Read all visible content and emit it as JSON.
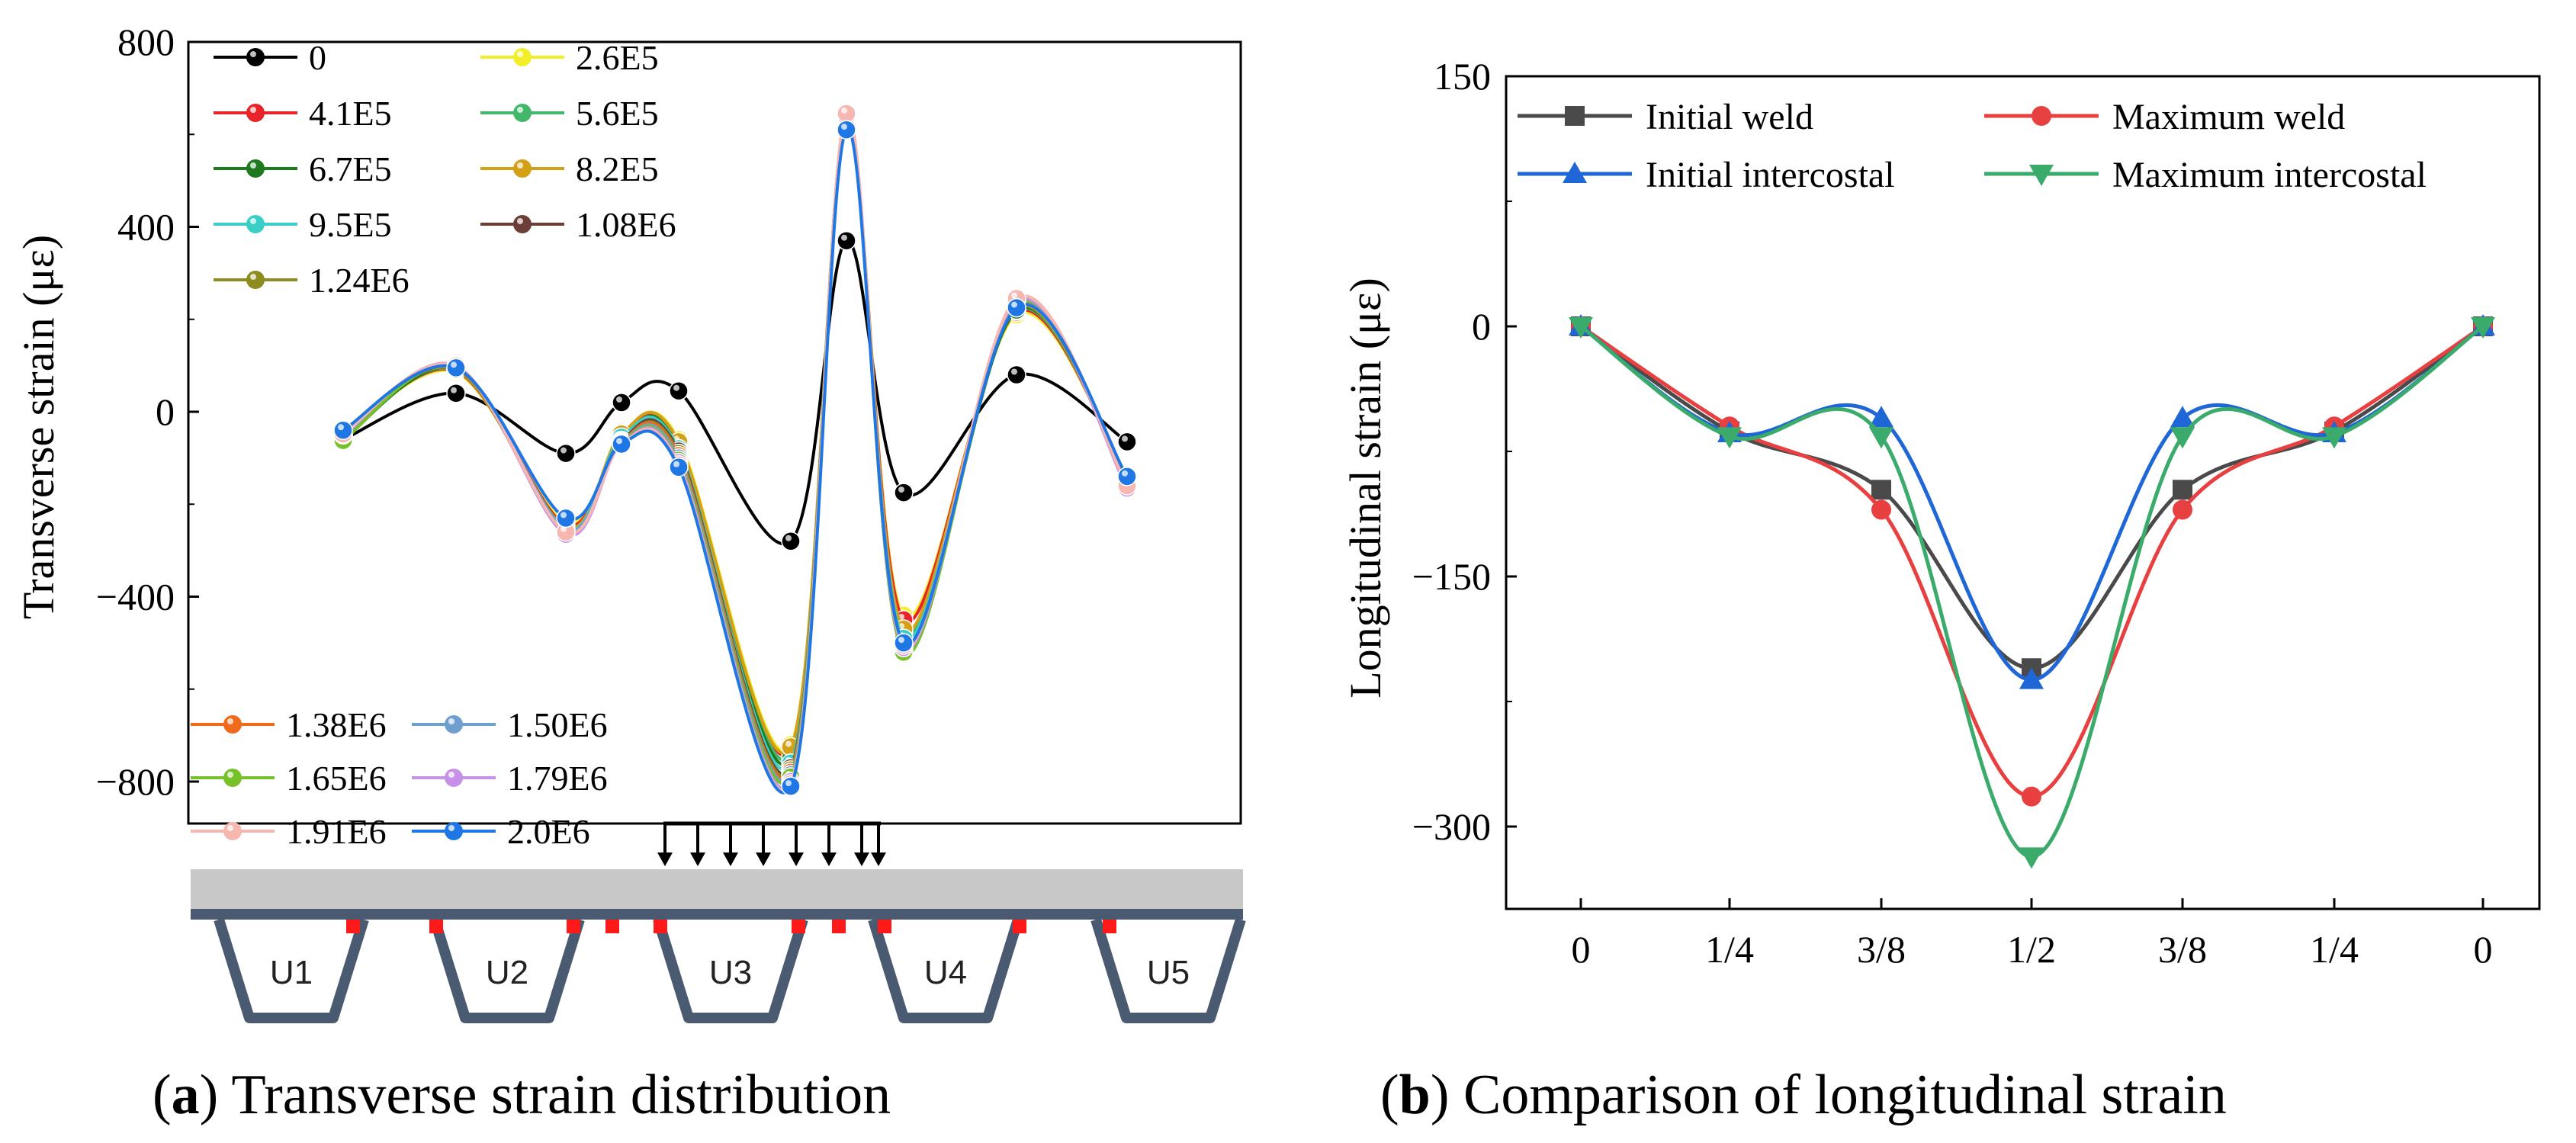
{
  "chart_data": [
    {
      "type": "line",
      "panel": "a",
      "caption_letter": "a",
      "caption_text": ") Transverse strain distribution",
      "ylabel": "Transverse strain (με)",
      "xlabel": "",
      "ylim": [
        -900,
        800
      ],
      "yticks": [
        800,
        400,
        0,
        -400,
        -800
      ],
      "ytick_labels": [
        "800",
        "400",
        "0",
        "−400",
        "−800"
      ],
      "x_positions": [
        0,
        1,
        2,
        3,
        4,
        5,
        6,
        7,
        8,
        9,
        10
      ],
      "xlim": [
        -0.3,
        10.5
      ],
      "series": [
        {
          "name": "0",
          "color": "#000000",
          "values": [
            -60,
            40,
            -90,
            20,
            45,
            -280,
            370,
            -175,
            80,
            null,
            -65
          ]
        },
        {
          "name": "2.6E5",
          "color": "#f2ef2a",
          "values": [
            -50,
            85,
            -240,
            -55,
            -60,
            -720,
            620,
            -440,
            210,
            null,
            -140
          ]
        },
        {
          "name": "4.1E5",
          "color": "#e8232a",
          "values": [
            -52,
            88,
            -245,
            -57,
            -65,
            -730,
            622,
            -450,
            215,
            null,
            -142
          ]
        },
        {
          "name": "5.6E5",
          "color": "#43b76a",
          "values": [
            -55,
            90,
            -250,
            -60,
            -70,
            -740,
            625,
            -480,
            218,
            null,
            -145
          ]
        },
        {
          "name": "6.7E5",
          "color": "#1f7a1f",
          "values": [
            -60,
            92,
            -255,
            -60,
            -72,
            -750,
            628,
            -500,
            220,
            null,
            -148
          ]
        },
        {
          "name": "8.2E5",
          "color": "#d4a017",
          "values": [
            -45,
            92,
            -252,
            -48,
            -65,
            -725,
            630,
            -470,
            225,
            null,
            -150
          ]
        },
        {
          "name": "9.5E5",
          "color": "#39cfc7",
          "values": [
            -50,
            95,
            -255,
            -55,
            -80,
            -760,
            632,
            -490,
            228,
            null,
            -152
          ]
        },
        {
          "name": "1.08E6",
          "color": "#6b3e36",
          "values": [
            -55,
            95,
            -258,
            -62,
            -85,
            -770,
            634,
            -500,
            230,
            null,
            -155
          ]
        },
        {
          "name": "1.24E6",
          "color": "#8c8c1f",
          "values": [
            -58,
            96,
            -260,
            -65,
            -90,
            -775,
            636,
            -505,
            232,
            null,
            -157
          ]
        },
        {
          "name": "1.38E6",
          "color": "#ef6a1a",
          "values": [
            -56,
            96,
            -258,
            -64,
            -95,
            -780,
            638,
            -508,
            234,
            null,
            -158
          ]
        },
        {
          "name": "1.50E6",
          "color": "#6f9fcf",
          "values": [
            -54,
            97,
            -255,
            -66,
            -100,
            -785,
            636,
            -510,
            235,
            null,
            -160
          ]
        },
        {
          "name": "1.65E6",
          "color": "#76c02a",
          "values": [
            -62,
            98,
            -262,
            -68,
            -105,
            -790,
            638,
            -520,
            236,
            null,
            -160
          ]
        },
        {
          "name": "1.79E6",
          "color": "#c592e8",
          "values": [
            -50,
            100,
            -265,
            -70,
            -110,
            -800,
            640,
            -510,
            240,
            null,
            -165
          ]
        },
        {
          "name": "1.91E6",
          "color": "#f6b7b0",
          "values": [
            -48,
            99,
            -260,
            -70,
            -115,
            -805,
            645,
            -505,
            245,
            null,
            -160
          ]
        },
        {
          "name": "2.0E6",
          "color": "#1f77e5",
          "values": [
            -40,
            95,
            -230,
            -70,
            -120,
            -810,
            610,
            -500,
            225,
            null,
            -140
          ]
        }
      ],
      "x_values_all": [
        0,
        1,
        2,
        3,
        4,
        5,
        6,
        7,
        8,
        10
      ]
    },
    {
      "type": "line",
      "panel": "b",
      "caption_letter": "b",
      "caption_text": ") Comparison of longitudinal strain",
      "ylabel": "Longitudinal strain (με)",
      "xlabel": "",
      "categories": [
        "0",
        "1/4",
        "3/8",
        "1/2",
        "3/8",
        "1/4",
        "0"
      ],
      "ylim": [
        -350,
        150
      ],
      "yticks": [
        150,
        0,
        -150,
        -300
      ],
      "ytick_labels": [
        "150",
        "0",
        "−150",
        "−300"
      ],
      "series": [
        {
          "name": "Initial  weld",
          "color": "#4a4a4a",
          "marker": "square",
          "values": [
            0,
            -63,
            -98,
            -205,
            -98,
            -63,
            0
          ]
        },
        {
          "name": "Maximum  weld",
          "color": "#e84040",
          "marker": "circle",
          "values": [
            0,
            -60,
            -110,
            -282,
            -110,
            -60,
            0
          ]
        },
        {
          "name": "Initial intercostal",
          "color": "#1f66d6",
          "marker": "triangle-up",
          "values": [
            0,
            -64,
            -55,
            -212,
            -55,
            -64,
            0
          ]
        },
        {
          "name": "Maximum intercostal",
          "color": "#3aab6b",
          "marker": "triangle-down",
          "values": [
            0,
            -66,
            -66,
            -318,
            -66,
            -66,
            0
          ]
        }
      ]
    }
  ],
  "diagram": {
    "u_labels": [
      "U1",
      "U2",
      "U3",
      "U4",
      "U5"
    ],
    "deck_color": "#c8c8c8",
    "rib_color": "#4a5a70",
    "gauge_color": "#ff1a1a"
  }
}
